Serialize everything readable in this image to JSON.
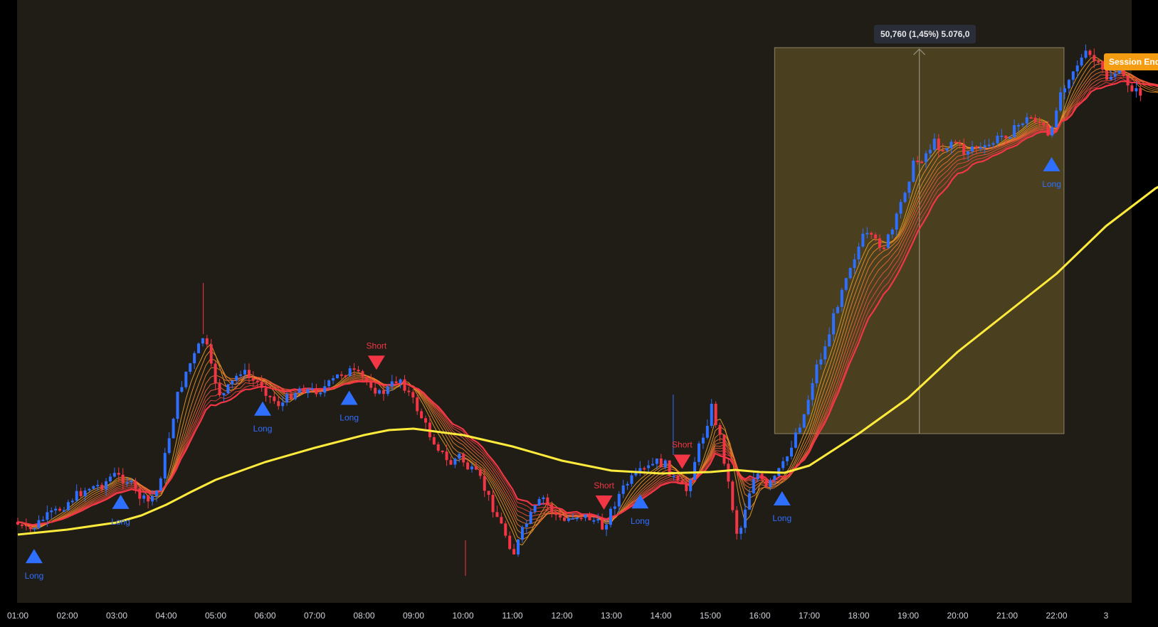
{
  "chart_data": {
    "type": "candlestick",
    "time_axis": {
      "ticks": [
        "01:00",
        "02:00",
        "03:00",
        "04:00",
        "05:00",
        "06:00",
        "07:00",
        "08:00",
        "09:00",
        "10:00",
        "11:00",
        "12:00",
        "13:00",
        "14:00",
        "15:00",
        "16:00",
        "17:00",
        "18:00",
        "19:00",
        "20:00",
        "21:00",
        "22:00",
        "3"
      ]
    },
    "colors": {
      "background": "#201d17",
      "bull_candle": "#2f6fff",
      "bear_candle": "#f23645",
      "long_ma": "#ffeb3b",
      "ribbon_fast": "#f5a623",
      "ribbon_slow": "#f23645",
      "measure_box": "#4f4520",
      "session_badge": "#f59d12"
    },
    "price_path": [
      {
        "t": 0.0,
        "p": 734
      },
      {
        "t": 0.3,
        "p": 748
      },
      {
        "t": 0.6,
        "p": 730
      },
      {
        "t": 0.9,
        "p": 718
      },
      {
        "t": 1.2,
        "p": 700
      },
      {
        "t": 1.5,
        "p": 686
      },
      {
        "t": 1.8,
        "p": 682
      },
      {
        "t": 2.0,
        "p": 668
      },
      {
        "t": 2.3,
        "p": 675
      },
      {
        "t": 2.5,
        "p": 695
      },
      {
        "t": 2.7,
        "p": 708
      },
      {
        "t": 2.9,
        "p": 690
      },
      {
        "t": 3.1,
        "p": 630
      },
      {
        "t": 3.3,
        "p": 560
      },
      {
        "t": 3.5,
        "p": 520
      },
      {
        "t": 3.7,
        "p": 495
      },
      {
        "t": 3.85,
        "p": 470
      },
      {
        "t": 4.0,
        "p": 520
      },
      {
        "t": 4.2,
        "p": 560
      },
      {
        "t": 4.4,
        "p": 540
      },
      {
        "t": 4.6,
        "p": 520
      },
      {
        "t": 4.8,
        "p": 535
      },
      {
        "t": 5.0,
        "p": 540
      },
      {
        "t": 5.2,
        "p": 560
      },
      {
        "t": 5.4,
        "p": 570
      },
      {
        "t": 5.6,
        "p": 555
      },
      {
        "t": 5.8,
        "p": 545
      },
      {
        "t": 6.0,
        "p": 550
      },
      {
        "t": 6.2,
        "p": 548
      },
      {
        "t": 6.4,
        "p": 540
      },
      {
        "t": 6.6,
        "p": 525
      },
      {
        "t": 6.8,
        "p": 522
      },
      {
        "t": 7.0,
        "p": 530
      },
      {
        "t": 7.2,
        "p": 538
      },
      {
        "t": 7.4,
        "p": 555
      },
      {
        "t": 7.6,
        "p": 545
      },
      {
        "t": 7.8,
        "p": 530
      },
      {
        "t": 8.0,
        "p": 555
      },
      {
        "t": 8.2,
        "p": 580
      },
      {
        "t": 8.4,
        "p": 610
      },
      {
        "t": 8.6,
        "p": 630
      },
      {
        "t": 8.8,
        "p": 655
      },
      {
        "t": 9.0,
        "p": 640
      },
      {
        "t": 9.2,
        "p": 660
      },
      {
        "t": 9.4,
        "p": 670
      },
      {
        "t": 9.6,
        "p": 700
      },
      {
        "t": 9.8,
        "p": 730
      },
      {
        "t": 10.0,
        "p": 760
      },
      {
        "t": 10.1,
        "p": 780
      },
      {
        "t": 10.3,
        "p": 745
      },
      {
        "t": 10.5,
        "p": 720
      },
      {
        "t": 10.7,
        "p": 700
      },
      {
        "t": 10.9,
        "p": 720
      },
      {
        "t": 11.1,
        "p": 735
      },
      {
        "t": 11.3,
        "p": 725
      },
      {
        "t": 11.5,
        "p": 725
      },
      {
        "t": 11.7,
        "p": 730
      },
      {
        "t": 11.9,
        "p": 742
      },
      {
        "t": 12.0,
        "p": 730
      },
      {
        "t": 12.2,
        "p": 700
      },
      {
        "t": 12.4,
        "p": 680
      },
      {
        "t": 12.6,
        "p": 668
      },
      {
        "t": 12.8,
        "p": 660
      },
      {
        "t": 13.0,
        "p": 650
      },
      {
        "t": 13.2,
        "p": 655
      },
      {
        "t": 13.4,
        "p": 680
      },
      {
        "t": 13.6,
        "p": 690
      },
      {
        "t": 13.8,
        "p": 640
      },
      {
        "t": 14.0,
        "p": 600
      },
      {
        "t": 14.1,
        "p": 570
      },
      {
        "t": 14.3,
        "p": 620
      },
      {
        "t": 14.5,
        "p": 700
      },
      {
        "t": 14.65,
        "p": 760
      },
      {
        "t": 14.8,
        "p": 710
      },
      {
        "t": 15.0,
        "p": 660
      },
      {
        "t": 15.2,
        "p": 690
      },
      {
        "t": 15.4,
        "p": 670
      },
      {
        "t": 15.6,
        "p": 650
      },
      {
        "t": 15.8,
        "p": 610
      },
      {
        "t": 16.0,
        "p": 580
      },
      {
        "t": 16.2,
        "p": 520
      },
      {
        "t": 16.4,
        "p": 490
      },
      {
        "t": 16.6,
        "p": 440
      },
      {
        "t": 16.8,
        "p": 390
      },
      {
        "t": 17.0,
        "p": 360
      },
      {
        "t": 17.2,
        "p": 330
      },
      {
        "t": 17.4,
        "p": 340
      },
      {
        "t": 17.6,
        "p": 345
      },
      {
        "t": 17.8,
        "p": 320
      },
      {
        "t": 18.0,
        "p": 270
      },
      {
        "t": 18.2,
        "p": 230
      },
      {
        "t": 18.4,
        "p": 220
      },
      {
        "t": 18.6,
        "p": 200
      },
      {
        "t": 18.8,
        "p": 210
      },
      {
        "t": 19.0,
        "p": 195
      },
      {
        "t": 19.2,
        "p": 215
      },
      {
        "t": 19.4,
        "p": 205
      },
      {
        "t": 19.6,
        "p": 212
      },
      {
        "t": 19.8,
        "p": 200
      },
      {
        "t": 20.0,
        "p": 190
      },
      {
        "t": 20.2,
        "p": 185
      },
      {
        "t": 20.4,
        "p": 170
      },
      {
        "t": 20.6,
        "p": 165
      },
      {
        "t": 20.8,
        "p": 175
      },
      {
        "t": 20.9,
        "p": 195
      },
      {
        "t": 21.0,
        "p": 185
      },
      {
        "t": 21.1,
        "p": 140
      },
      {
        "t": 21.3,
        "p": 110
      },
      {
        "t": 21.5,
        "p": 90
      },
      {
        "t": 21.7,
        "p": 75
      },
      {
        "t": 21.9,
        "p": 90
      },
      {
        "t": 22.1,
        "p": 110
      },
      {
        "t": 22.3,
        "p": 100
      },
      {
        "t": 22.5,
        "p": 115
      },
      {
        "t": 22.7,
        "p": 130
      }
    ],
    "long_ma_path": [
      {
        "t": 0.0,
        "p": 752
      },
      {
        "t": 1.0,
        "p": 745
      },
      {
        "t": 2.0,
        "p": 735
      },
      {
        "t": 2.5,
        "p": 725
      },
      {
        "t": 3.0,
        "p": 710
      },
      {
        "t": 3.5,
        "p": 692
      },
      {
        "t": 4.0,
        "p": 675
      },
      {
        "t": 5.0,
        "p": 650
      },
      {
        "t": 6.0,
        "p": 630
      },
      {
        "t": 7.0,
        "p": 612
      },
      {
        "t": 7.5,
        "p": 605
      },
      {
        "t": 8.0,
        "p": 603
      },
      {
        "t": 9.0,
        "p": 612
      },
      {
        "t": 10.0,
        "p": 628
      },
      {
        "t": 11.0,
        "p": 648
      },
      {
        "t": 12.0,
        "p": 662
      },
      {
        "t": 13.0,
        "p": 666
      },
      {
        "t": 14.0,
        "p": 664
      },
      {
        "t": 14.5,
        "p": 661
      },
      {
        "t": 15.0,
        "p": 664
      },
      {
        "t": 15.5,
        "p": 665
      },
      {
        "t": 16.0,
        "p": 655
      },
      {
        "t": 17.0,
        "p": 610
      },
      {
        "t": 18.0,
        "p": 560
      },
      {
        "t": 19.0,
        "p": 495
      },
      {
        "t": 20.0,
        "p": 440
      },
      {
        "t": 21.0,
        "p": 385
      },
      {
        "t": 22.0,
        "p": 318
      },
      {
        "t": 23.0,
        "p": 265
      },
      {
        "t": 23.4,
        "p": 250
      }
    ],
    "signals": [
      {
        "type": "long",
        "t": 0.33,
        "label": "Long"
      },
      {
        "type": "long",
        "t": 2.08,
        "label": "Long"
      },
      {
        "type": "long",
        "t": 4.95,
        "label": "Long"
      },
      {
        "type": "long",
        "t": 6.7,
        "label": "Long"
      },
      {
        "type": "short",
        "t": 7.25,
        "label": "Short"
      },
      {
        "type": "short",
        "t": 11.85,
        "label": "Short"
      },
      {
        "type": "long",
        "t": 12.58,
        "label": "Long"
      },
      {
        "type": "short",
        "t": 13.43,
        "label": "Short"
      },
      {
        "type": "long",
        "t": 15.45,
        "label": "Long"
      },
      {
        "type": "long",
        "t": 20.9,
        "label": "Long"
      }
    ],
    "measurement": {
      "t_start": 15.3,
      "t_end": 21.15,
      "p_top": 67,
      "p_bottom": 610,
      "text": "50,760 (1,45%) 5.076,0"
    },
    "session_badge": "Session Ende"
  }
}
